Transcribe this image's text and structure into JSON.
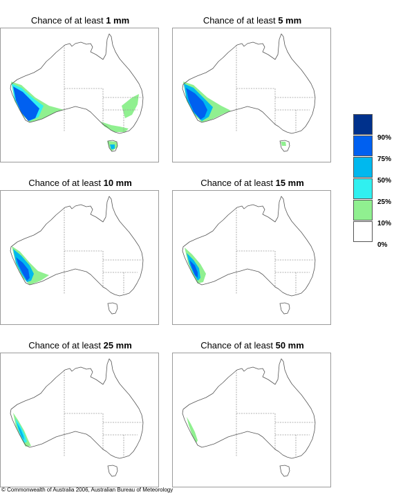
{
  "panels": [
    {
      "prefix": "Chance of at least ",
      "amount": "1 mm"
    },
    {
      "prefix": "Chance of at least ",
      "amount": "5 mm"
    },
    {
      "prefix": "Chance of at least ",
      "amount": "10 mm"
    },
    {
      "prefix": "Chance of at least ",
      "amount": "15 mm"
    },
    {
      "prefix": "Chance of at least ",
      "amount": "25 mm"
    },
    {
      "prefix": "Chance of at least ",
      "amount": "50 mm"
    }
  ],
  "legend": {
    "labels": [
      "90%",
      "75%",
      "50%",
      "25%",
      "10%",
      "0%"
    ],
    "colors": [
      "#00318c",
      "#0060f0",
      "#00b8ee",
      "#30f0f0",
      "#90f090",
      "#ffffff"
    ]
  },
  "copyright": "© Commonwealth of Australia 2006, Australian Bureau of Meteorology"
}
